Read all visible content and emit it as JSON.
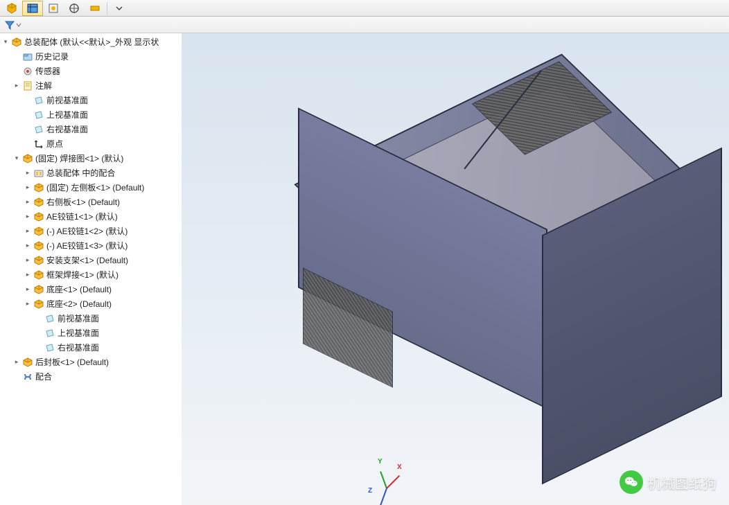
{
  "toolbar": {
    "buttons": [
      {
        "name": "assembly-icon",
        "glyph": "cube",
        "active": false
      },
      {
        "name": "display-pane-icon",
        "glyph": "pane",
        "active": true
      },
      {
        "name": "feature-manager-icon",
        "glyph": "fm",
        "active": false
      },
      {
        "name": "target-icon",
        "glyph": "target",
        "active": false
      },
      {
        "name": "config-icon",
        "glyph": "gear",
        "active": false
      },
      {
        "name": "motion-icon",
        "glyph": "motion",
        "active": false
      }
    ]
  },
  "filter": {
    "label": ""
  },
  "tree": {
    "root": "总装配体  (默认<<默认>_外观 显示状",
    "items": [
      {
        "indent": 1,
        "icon": "folder",
        "exp": "none",
        "label": "历史记录"
      },
      {
        "indent": 1,
        "icon": "sensor",
        "exp": "none",
        "label": "传感器"
      },
      {
        "indent": 1,
        "icon": "note",
        "exp": "closed",
        "label": "注解"
      },
      {
        "indent": 2,
        "icon": "plane",
        "exp": "none",
        "label": "前视基准面"
      },
      {
        "indent": 2,
        "icon": "plane",
        "exp": "none",
        "label": "上视基准面"
      },
      {
        "indent": 2,
        "icon": "plane",
        "exp": "none",
        "label": "右视基准面"
      },
      {
        "indent": 2,
        "icon": "origin",
        "exp": "none",
        "label": "原点"
      },
      {
        "indent": 1,
        "icon": "part",
        "exp": "open",
        "label": "(固定) 焊接图<1> (默认)"
      },
      {
        "indent": 2,
        "icon": "mate",
        "exp": "closed",
        "label": "总装配体 中的配合"
      },
      {
        "indent": 2,
        "icon": "part",
        "exp": "closed",
        "label": "(固定) 左侧板<1> (Default)"
      },
      {
        "indent": 2,
        "icon": "part",
        "exp": "closed",
        "label": "右侧板<1> (Default)"
      },
      {
        "indent": 2,
        "icon": "part",
        "exp": "closed",
        "label": "AE铰链1<1> (默认)"
      },
      {
        "indent": 2,
        "icon": "part",
        "exp": "closed",
        "label": "(-) AE铰链1<2> (默认)"
      },
      {
        "indent": 2,
        "icon": "part",
        "exp": "closed",
        "label": "(-) AE铰链1<3> (默认)"
      },
      {
        "indent": 2,
        "icon": "part",
        "exp": "closed",
        "label": "安装支架<1> (Default)"
      },
      {
        "indent": 2,
        "icon": "part",
        "exp": "closed",
        "label": "框架焊接<1> (默认)"
      },
      {
        "indent": 2,
        "icon": "part",
        "exp": "closed",
        "label": "底座<1> (Default)"
      },
      {
        "indent": 2,
        "icon": "part",
        "exp": "closed",
        "label": "底座<2> (Default)"
      },
      {
        "indent": 3,
        "icon": "plane",
        "exp": "none",
        "label": "前视基准面"
      },
      {
        "indent": 3,
        "icon": "plane",
        "exp": "none",
        "label": "上视基准面"
      },
      {
        "indent": 3,
        "icon": "plane",
        "exp": "none",
        "label": "右视基准面"
      },
      {
        "indent": 1,
        "icon": "part",
        "exp": "closed",
        "label": "后封板<1> (Default)"
      },
      {
        "indent": 1,
        "icon": "mates",
        "exp": "none",
        "label": "配合"
      }
    ]
  },
  "triad": {
    "x": "X",
    "y": "Y",
    "z": "Z",
    "colors": {
      "x": "#d03030",
      "y": "#20a020",
      "z": "#3050d0"
    }
  },
  "watermark": "机械图纸狗",
  "model_colors": {
    "top": "#7a7fa0",
    "front": "#6e7390",
    "right": "#565b76",
    "edge": "#2a2d3f",
    "floor": "#a4a7b8",
    "vent": "#4a4d5e",
    "plate": "#dcdce2"
  },
  "viewport_bg": {
    "top": "#d8e4ef",
    "bottom": "#f2f5f8"
  }
}
